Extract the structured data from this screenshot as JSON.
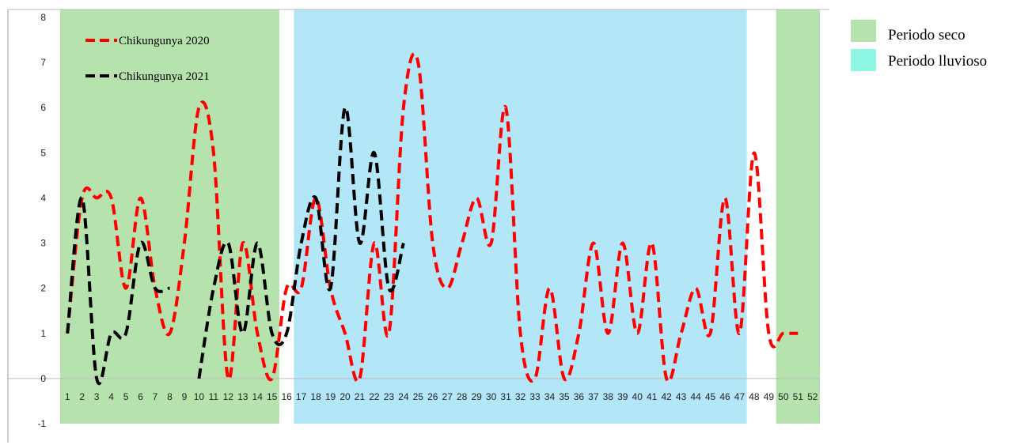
{
  "chart_data": {
    "type": "line",
    "title": "",
    "xlabel": "",
    "ylabel": "",
    "ylim": [
      -1,
      8
    ],
    "yticks": [
      "-1",
      "0",
      "1",
      "2",
      "3",
      "4",
      "5",
      "6",
      "7",
      "8"
    ],
    "categories": [
      "1",
      "2",
      "3",
      "4",
      "5",
      "6",
      "7",
      "8",
      "9",
      "10",
      "11",
      "12",
      "13",
      "14",
      "15",
      "16",
      "17",
      "18",
      "19",
      "20",
      "21",
      "22",
      "23",
      "24",
      "25",
      "26",
      "27",
      "28",
      "29",
      "30",
      "31",
      "32",
      "33",
      "34",
      "35",
      "36",
      "37",
      "38",
      "39",
      "40",
      "41",
      "42",
      "43",
      "44",
      "45",
      "46",
      "47",
      "48",
      "49",
      "50",
      "51",
      "52"
    ],
    "series": [
      {
        "name": "Chikungunya 2020",
        "color": "#ff0000",
        "style": "dashed",
        "values": [
          1,
          4,
          4,
          4,
          2,
          4,
          2,
          1,
          3,
          6,
          5,
          0,
          3,
          1,
          0,
          2,
          2,
          4,
          2,
          1,
          0,
          3,
          1,
          6,
          7,
          3,
          2,
          3,
          4,
          3,
          6,
          1,
          0,
          2,
          0,
          1,
          3,
          1,
          3,
          1,
          3,
          0,
          1,
          2,
          1,
          4,
          1,
          5,
          1,
          1,
          1,
          null
        ]
      },
      {
        "name": "Chikungunya 2021",
        "color": "#000000",
        "style": "dashed",
        "values": [
          1,
          4,
          0,
          1,
          1,
          3,
          2,
          2,
          null,
          0,
          2,
          3,
          1,
          3,
          1,
          1,
          3,
          4,
          2,
          6,
          3,
          5,
          2,
          3,
          null,
          null,
          null,
          null,
          null,
          null,
          null,
          null,
          null,
          null,
          null,
          null,
          null,
          null,
          null,
          null,
          null,
          null,
          null,
          null,
          null,
          null,
          null,
          null,
          null,
          null,
          null,
          null
        ]
      }
    ],
    "periods": [
      {
        "label": "Periodo seco",
        "color": "#b6e3ad",
        "from_week": 1,
        "to_week": 15
      },
      {
        "label": "Periodo lluvioso",
        "color": "#b3e6f7",
        "from_week": 17,
        "to_week": 47
      },
      {
        "label": "Periodo seco",
        "color": "#b6e3ad",
        "from_week": 50,
        "to_week": 52
      }
    ],
    "legend_position": "top-left",
    "grid": false
  },
  "side_legend": [
    {
      "label": "Periodo seco",
      "color": "#b6e3ad"
    },
    {
      "label": "Periodo lluvioso",
      "color": "#8ef7e3"
    }
  ]
}
